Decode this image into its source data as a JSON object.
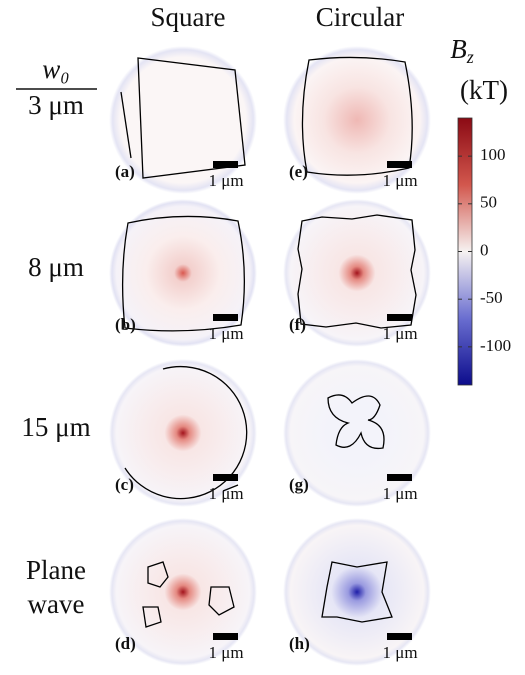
{
  "columns": [
    "Square",
    "Circular"
  ],
  "rows": [
    {
      "numerator": "w₀",
      "label": "3 μm"
    },
    {
      "label": "8 μm"
    },
    {
      "label": "15 μm"
    },
    {
      "label": "Plane",
      "label2": "wave"
    }
  ],
  "panels": [
    {
      "tag": "(a)",
      "scale": "1 μm"
    },
    {
      "tag": "(b)",
      "scale": "1 μm"
    },
    {
      "tag": "(c)",
      "scale": "1 μm"
    },
    {
      "tag": "(d)",
      "scale": "1 μm"
    },
    {
      "tag": "(e)",
      "scale": "1 μm"
    },
    {
      "tag": "(f)",
      "scale": "1 μm"
    },
    {
      "tag": "(g)",
      "scale": "1 μm"
    },
    {
      "tag": "(h)",
      "scale": "1 μm"
    }
  ],
  "colorbar": {
    "symbol": "B",
    "subscript": "z",
    "unit": "(kT)",
    "lim": [
      -140,
      140
    ],
    "ticks": [
      100,
      50,
      0,
      -50,
      -100
    ]
  }
}
